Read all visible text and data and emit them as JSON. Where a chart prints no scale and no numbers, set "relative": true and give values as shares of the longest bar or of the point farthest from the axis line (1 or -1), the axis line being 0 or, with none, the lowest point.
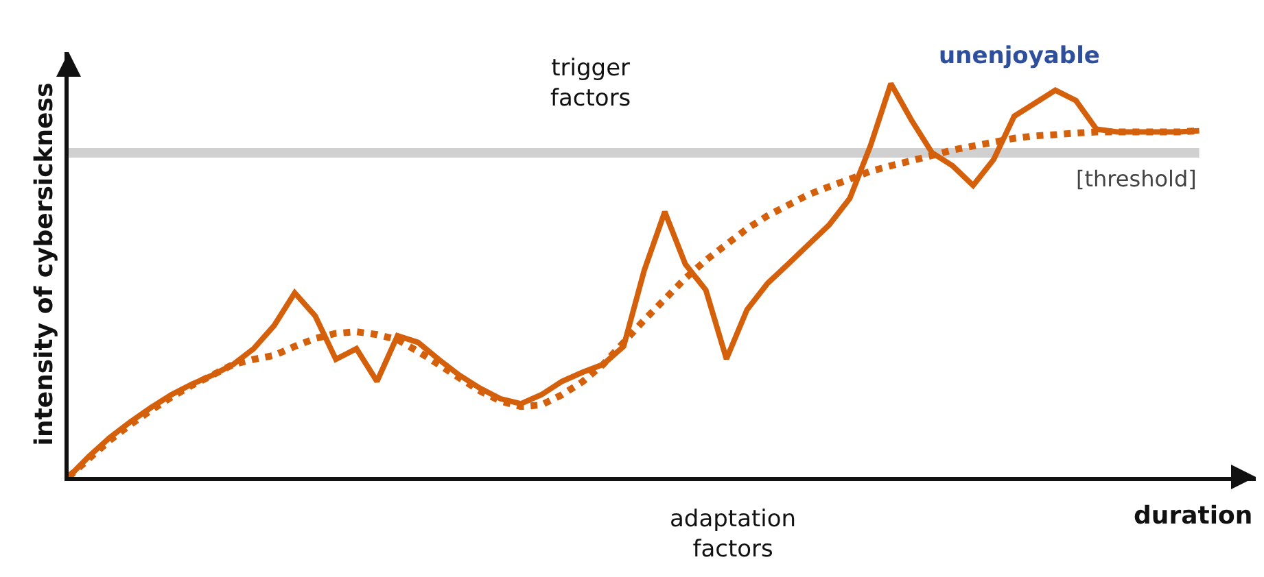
{
  "chart_data": {
    "type": "line",
    "relative": true,
    "xlabel": "duration",
    "ylabel": "intensity of cybersickness",
    "categories": [
      null,
      null,
      null,
      null,
      null,
      null,
      null,
      null,
      null,
      null,
      null,
      null,
      null,
      null,
      null,
      null,
      null,
      null,
      null,
      null,
      null,
      null,
      null,
      null,
      null,
      null,
      null,
      null,
      null,
      null,
      null,
      null,
      null,
      null,
      null,
      null,
      null,
      null,
      null,
      null,
      null,
      null,
      null,
      null,
      null,
      null,
      null,
      null,
      null,
      null,
      null,
      null,
      null,
      null,
      null,
      null
    ],
    "series": [
      {
        "color": "#d4600c",
        "line_style": "solid",
        "values": [
          0,
          0.053,
          0.1,
          0.14,
          0.176,
          0.209,
          0.236,
          0.259,
          0.286,
          0.326,
          0.385,
          0.468,
          0.409,
          0.299,
          0.326,
          0.243,
          0.359,
          0.342,
          0.299,
          0.259,
          0.226,
          0.199,
          0.186,
          0.209,
          0.243,
          0.266,
          0.286,
          0.332,
          0.525,
          0.674,
          0.541,
          0.475,
          0.3,
          0.425,
          0.492,
          0.541,
          0.591,
          0.641,
          0.708,
          0.841,
          1,
          0.907,
          0.824,
          0.791,
          0.741,
          0.807,
          0.917,
          0.95,
          0.983,
          0.957,
          0.884,
          0.877,
          0.877,
          0.877,
          0.877,
          0.88
        ]
      },
      {
        "color": "#d4600c",
        "line_style": "dotted",
        "values": [
          0,
          0.047,
          0.093,
          0.133,
          0.169,
          0.203,
          0.233,
          0.259,
          0.286,
          0.299,
          0.309,
          0.332,
          0.352,
          0.365,
          0.369,
          0.362,
          0.349,
          0.319,
          0.286,
          0.252,
          0.219,
          0.193,
          0.179,
          0.183,
          0.209,
          0.242,
          0.286,
          0.342,
          0.399,
          0.452,
          0.505,
          0.551,
          0.591,
          0.631,
          0.664,
          0.691,
          0.718,
          0.738,
          0.757,
          0.777,
          0.791,
          0.804,
          0.817,
          0.831,
          0.841,
          0.851,
          0.861,
          0.867,
          0.87,
          0.874,
          0.877,
          0.877,
          0.877,
          0.877,
          0.877,
          0.88
        ]
      }
    ],
    "ref_lines": [
      {
        "axis": "y",
        "value": 0.824,
        "label": "[threshold]",
        "color": "#d0d0d0"
      }
    ],
    "annotations": [
      "trigger\nfactors",
      "adaptation\nfactors",
      "unenjoyable"
    ],
    "grid": false,
    "marker": "none"
  }
}
